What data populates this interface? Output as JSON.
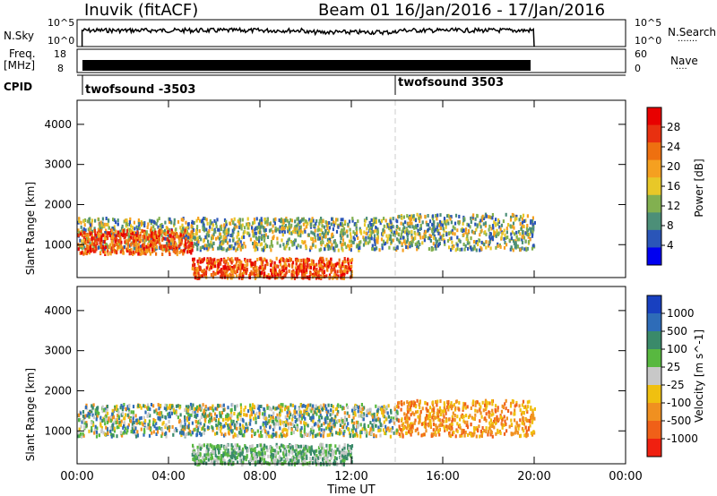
{
  "header": {
    "station": "Inuvik (fitACF)",
    "beam": "Beam 01",
    "date_range": "16/Jan/2016 - 17/Jan/2016"
  },
  "nsky_panel": {
    "left_label": "N.Sky",
    "left_ticks": [
      "10^5",
      "10^0"
    ],
    "right_ticks": [
      "10^5",
      "10^0"
    ],
    "right_label": "N.Search",
    "right_label_dots": "·······"
  },
  "freq_panel": {
    "left_label_1": "Freq.",
    "left_label_2": "[MHz]",
    "left_ticks": [
      "18",
      "8"
    ],
    "right_ticks": [
      "60",
      "0"
    ],
    "right_label": "Nave",
    "right_label_dots": "····"
  },
  "cpid_panel": {
    "label": "CPID",
    "programs": [
      {
        "name": "twofsound -3503",
        "start_hour": 0
      },
      {
        "name": "twofsound 3503",
        "start_hour": 14
      }
    ]
  },
  "time_axis": {
    "label": "Time UT",
    "ticks": [
      "00:00",
      "04:00",
      "08:00",
      "12:00",
      "16:00",
      "20:00",
      "00:00"
    ]
  },
  "chart_data": [
    {
      "type": "heatmap",
      "title": "",
      "xlabel": "Time UT",
      "ylabel": "Slant Range [km]",
      "xlim": [
        0,
        24
      ],
      "ylim": [
        180,
        4600
      ],
      "yticks": [
        "1000",
        "2000",
        "3000",
        "4000"
      ],
      "colorbar": {
        "label": "Power [dB]",
        "ticks": [
          "4",
          "8",
          "12",
          "16",
          "20",
          "24",
          "28"
        ],
        "colors": [
          "#0000f0",
          "#2a55b8",
          "#4c8f78",
          "#82b050",
          "#e8c828",
          "#f5a020",
          "#ee7010",
          "#e83010",
          "#e80000"
        ]
      },
      "echo_regions": [
        {
          "t": [
            0,
            14
          ],
          "range": [
            900,
            1700
          ],
          "level": "mid"
        },
        {
          "t": [
            0,
            5
          ],
          "range": [
            800,
            1400
          ],
          "level": "high"
        },
        {
          "t": [
            5,
            12
          ],
          "range": [
            200,
            700
          ],
          "level": "high"
        },
        {
          "t": [
            14,
            20
          ],
          "range": [
            900,
            1800
          ],
          "level": "mid"
        }
      ]
    },
    {
      "type": "heatmap",
      "title": "",
      "xlabel": "Time UT",
      "ylabel": "Slant Range [km]",
      "xlim": [
        0,
        24
      ],
      "ylim": [
        180,
        4600
      ],
      "yticks": [
        "1000",
        "2000",
        "3000",
        "4000"
      ],
      "colorbar": {
        "label": "Velocity [m s^-1]",
        "ticks": [
          "1000",
          "500",
          "100",
          "25",
          "-25",
          "-100",
          "-500",
          "-1000"
        ],
        "colors": [
          "#1840c0",
          "#2e6cb8",
          "#3a8a6a",
          "#58b840",
          "#c8c8c8",
          "#f0c010",
          "#f09020",
          "#f06018",
          "#f02010"
        ]
      },
      "echo_regions": [
        {
          "t": [
            0,
            14
          ],
          "range": [
            900,
            1700
          ],
          "level": "mixed"
        },
        {
          "t": [
            5,
            12
          ],
          "range": [
            200,
            700
          ],
          "level": "low"
        },
        {
          "t": [
            14,
            20
          ],
          "range": [
            900,
            1800
          ],
          "level": "negative"
        }
      ]
    }
  ],
  "colors": {
    "axis": "#000000",
    "divider": "#cccccc"
  }
}
